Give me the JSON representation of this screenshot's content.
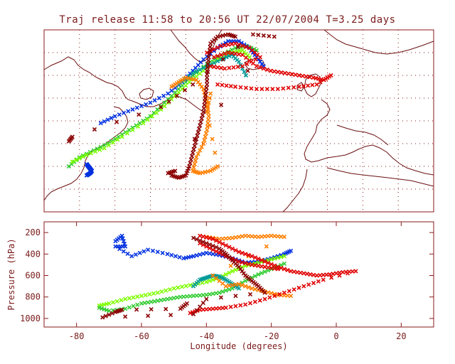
{
  "title": "Traj release 11:58 to 20:56 UT 22/07/2004    T=3.25 days",
  "colors": {
    "frame": "#8b1a1a",
    "coast": "#6b0f0f",
    "grid": "#8b1a1a",
    "text": "#7a1a1a",
    "dark_red": "#8b0000",
    "red": "#e00000",
    "orange": "#ff7f00",
    "green": "#33cc33",
    "light_green": "#7fff00",
    "teal": "#009999",
    "blue": "#0030e0"
  },
  "chart_data": [
    {
      "type": "scatter",
      "title": "Traj release 11:58 to 20:56 UT 22/07/2004    T=3.25 days",
      "xlim": [
        -80,
        30
      ],
      "ylim": [
        25,
        65
      ],
      "grid": "dotted",
      "series": [
        {
          "color": "#33cc33",
          "points": [
            [
              -73,
              35
            ],
            [
              -70,
              37
            ],
            [
              -66,
              38.5
            ],
            [
              -62,
              40
            ],
            [
              -58,
              42
            ],
            [
              -54,
              44
            ],
            [
              -50,
              46
            ],
            [
              -46,
              49
            ],
            [
              -42,
              52
            ],
            [
              -38,
              55
            ],
            [
              -34,
              57.5
            ],
            [
              -30,
              59.5
            ],
            [
              -26,
              61
            ],
            [
              -23,
              61.5
            ],
            [
              -20,
              60.5
            ]
          ]
        },
        {
          "color": "#7fff00",
          "points": [
            [
              -72,
              36
            ],
            [
              -68,
              37.5
            ],
            [
              -63,
              39
            ],
            [
              -58,
              41.5
            ],
            [
              -52,
              44.5
            ],
            [
              -47,
              47.5
            ],
            [
              -43,
              50.5
            ],
            [
              -39,
              53.5
            ],
            [
              -35,
              56
            ],
            [
              -31,
              58.5
            ],
            [
              -27,
              60
            ],
            [
              -24,
              60.5
            ],
            [
              -22,
              59
            ]
          ]
        },
        {
          "color": "#0030e0",
          "points": [
            [
              -64,
              44.5
            ],
            [
              -60,
              46
            ],
            [
              -55,
              47.5
            ],
            [
              -50,
              49
            ],
            [
              -45,
              51
            ],
            [
              -41,
              53.5
            ],
            [
              -38,
              56
            ],
            [
              -35,
              58.5
            ],
            [
              -31,
              61
            ],
            [
              -28,
              62.5
            ],
            [
              -25,
              62.5
            ],
            [
              -22,
              61
            ],
            [
              -20,
              59
            ],
            [
              -18,
              57
            ]
          ]
        },
        {
          "color": "#0030e0",
          "points": [
            [
              -68,
              35.5
            ],
            [
              -67.5,
              35
            ],
            [
              -67,
              34.5
            ],
            [
              -66.5,
              34
            ],
            [
              -67,
              33.5
            ],
            [
              -68,
              33
            ]
          ]
        },
        {
          "color": "#009999",
          "points": [
            [
              -42,
              53
            ],
            [
              -38,
              55.5
            ],
            [
              -34,
              57
            ],
            [
              -30,
              58.5
            ],
            [
              -27,
              59.5
            ],
            [
              -25,
              58
            ],
            [
              -23,
              55
            ]
          ]
        },
        {
          "color": "#ff7f00",
          "points": [
            [
              -44,
              52.5
            ],
            [
              -42,
              53.5
            ],
            [
              -40,
              54.5
            ],
            [
              -37,
              54
            ],
            [
              -35,
              52
            ],
            [
              -34,
              49
            ],
            [
              -33.5,
              46
            ],
            [
              -34,
              43
            ],
            [
              -35,
              40
            ],
            [
              -37,
              37
            ],
            [
              -38,
              34
            ],
            [
              -36,
              33.5
            ],
            [
              -33,
              34
            ],
            [
              -31,
              35
            ],
            [
              -34,
              47
            ],
            [
              -33,
              51
            ]
          ]
        },
        {
          "color": "#e00000",
          "points": [
            [
              -32,
              59
            ],
            [
              -28,
              60
            ],
            [
              -24,
              59.5
            ],
            [
              -20,
              57
            ],
            [
              -16,
              56
            ],
            [
              -12,
              55.5
            ],
            [
              -8,
              55
            ],
            [
              -4,
              54.5
            ],
            [
              -1,
              54
            ],
            [
              1,
              55
            ],
            [
              -3,
              53
            ],
            [
              -8,
              52.5
            ],
            [
              -14,
              52
            ],
            [
              -20,
              52
            ],
            [
              -26,
              52.5
            ],
            [
              -31,
              53
            ]
          ]
        },
        {
          "color": "#e00000",
          "points": [
            [
              -34,
              60
            ],
            [
              -30,
              61.5
            ],
            [
              -26,
              62
            ],
            [
              -22,
              61
            ],
            [
              -19,
              59
            ],
            [
              -24,
              57
            ],
            [
              -29,
              56.5
            ],
            [
              -33,
              57
            ]
          ]
        },
        {
          "color": "#8b0000",
          "points": [
            [
              -44,
              33
            ],
            [
              -42,
              32.5
            ],
            [
              -40,
              33
            ],
            [
              -39,
              35
            ],
            [
              -38,
              38
            ],
            [
              -37,
              41
            ],
            [
              -36,
              44
            ],
            [
              -35,
              47
            ],
            [
              -34.5,
              50
            ],
            [
              -34,
              53
            ],
            [
              -34,
              56
            ],
            [
              -33.5,
              59
            ],
            [
              -33,
              62
            ],
            [
              -31,
              63.5
            ],
            [
              -28,
              64
            ],
            [
              -26,
              63.5
            ]
          ]
        },
        {
          "color": "#8b0000",
          "points": [
            [
              -73,
              40.5
            ],
            [
              -72,
              41.5
            ],
            [
              -47,
              48
            ],
            [
              -38,
              53
            ],
            [
              -21,
              64
            ],
            [
              -15,
              63.5
            ],
            [
              -45,
              33.5
            ],
            [
              -43,
              34
            ]
          ]
        }
      ]
    },
    {
      "type": "scatter",
      "xlabel": "Longitude  (degrees)",
      "ylabel": "Pressure  (hPa)",
      "xlim": [
        -90,
        30
      ],
      "ylim": [
        1080,
        100
      ],
      "xticks": [
        "-80",
        "-60",
        "-40",
        "-20",
        "0",
        "20"
      ],
      "yticks": [
        "200",
        "400",
        "600",
        "800",
        "1000"
      ],
      "series": [
        {
          "color": "#0030e0",
          "points": [
            [
              -68,
              280
            ],
            [
              -66,
              230
            ],
            [
              -65,
              330
            ],
            [
              -68,
              330
            ],
            [
              -63,
              420
            ],
            [
              -58,
              360
            ],
            [
              -52,
              400
            ],
            [
              -47,
              440
            ],
            [
              -44,
              420
            ],
            [
              -40,
              390
            ],
            [
              -36,
              410
            ],
            [
              -32,
              440
            ],
            [
              -28,
              480
            ],
            [
              -24,
              470
            ],
            [
              -20,
              440
            ],
            [
              -16,
              400
            ],
            [
              -14,
              370
            ]
          ]
        },
        {
          "color": "#7fff00",
          "points": [
            [
              -73,
              880
            ],
            [
              -70,
              860
            ],
            [
              -65,
              820
            ],
            [
              -60,
              790
            ],
            [
              -55,
              760
            ],
            [
              -50,
              720
            ],
            [
              -45,
              690
            ],
            [
              -40,
              660
            ],
            [
              -36,
              620
            ],
            [
              -32,
              560
            ],
            [
              -28,
              510
            ],
            [
              -24,
              480
            ],
            [
              -20,
              450
            ],
            [
              -16,
              420
            ]
          ]
        },
        {
          "color": "#33cc33",
          "points": [
            [
              -73,
              900
            ],
            [
              -70,
              930
            ],
            [
              -65,
              910
            ],
            [
              -60,
              860
            ],
            [
              -56,
              840
            ],
            [
              -52,
              820
            ],
            [
              -48,
              800
            ],
            [
              -44,
              790
            ],
            [
              -40,
              780
            ],
            [
              -36,
              760
            ],
            [
              -32,
              720
            ],
            [
              -28,
              650
            ],
            [
              -24,
              590
            ],
            [
              -20,
              540
            ],
            [
              -16,
              490
            ]
          ]
        },
        {
          "color": "#009999",
          "points": [
            [
              -44,
              700
            ],
            [
              -42,
              640
            ],
            [
              -40,
              620
            ],
            [
              -38,
              600
            ],
            [
              -36,
              610
            ],
            [
              -34,
              640
            ],
            [
              -32,
              680
            ],
            [
              -30,
              720
            ]
          ]
        },
        {
          "color": "#ff7f00",
          "points": [
            [
              -40,
              240
            ],
            [
              -36,
              260
            ],
            [
              -32,
              250
            ],
            [
              -28,
              230
            ],
            [
              -24,
              240
            ],
            [
              -20,
              230
            ],
            [
              -16,
              240
            ],
            [
              -38,
              600
            ],
            [
              -34,
              700
            ],
            [
              -30,
              680
            ],
            [
              -26,
              720
            ],
            [
              -22,
              750
            ],
            [
              -18,
              780
            ],
            [
              -14,
              790
            ]
          ]
        },
        {
          "color": "#e00000",
          "points": [
            [
              -42,
              230
            ],
            [
              -38,
              260
            ],
            [
              -34,
              320
            ],
            [
              -30,
              380
            ],
            [
              -26,
              420
            ],
            [
              -22,
              470
            ],
            [
              -18,
              520
            ],
            [
              -14,
              560
            ],
            [
              -10,
              580
            ],
            [
              -6,
              600
            ],
            [
              -2,
              590
            ],
            [
              2,
              570
            ],
            [
              6,
              560
            ],
            [
              -4,
              640
            ],
            [
              -10,
              700
            ],
            [
              -16,
              760
            ],
            [
              -22,
              820
            ],
            [
              -28,
              870
            ],
            [
              -34,
              900
            ],
            [
              -38,
              910
            ],
            [
              -42,
              920
            ],
            [
              -45,
              950
            ]
          ]
        },
        {
          "color": "#e00000",
          "points": [
            [
              -42,
              300
            ],
            [
              -38,
              360
            ],
            [
              -34,
              420
            ],
            [
              -30,
              470
            ],
            [
              -26,
              500
            ],
            [
              -22,
              520
            ],
            [
              -18,
              540
            ]
          ]
        },
        {
          "color": "#8b0000",
          "points": [
            [
              -44,
              250
            ],
            [
              -40,
              300
            ],
            [
              -36,
              350
            ],
            [
              -34,
              400
            ],
            [
              -32,
              460
            ],
            [
              -30,
              520
            ],
            [
              -28,
              600
            ],
            [
              -26,
              650
            ],
            [
              -24,
              700
            ],
            [
              -22,
              760
            ],
            [
              -40,
              820
            ],
            [
              -44,
              960
            ],
            [
              -72,
              990
            ],
            [
              -68,
              940
            ],
            [
              -66,
              920
            ],
            [
              -48,
              910
            ],
            [
              -46,
              860
            ]
          ]
        }
      ]
    }
  ]
}
